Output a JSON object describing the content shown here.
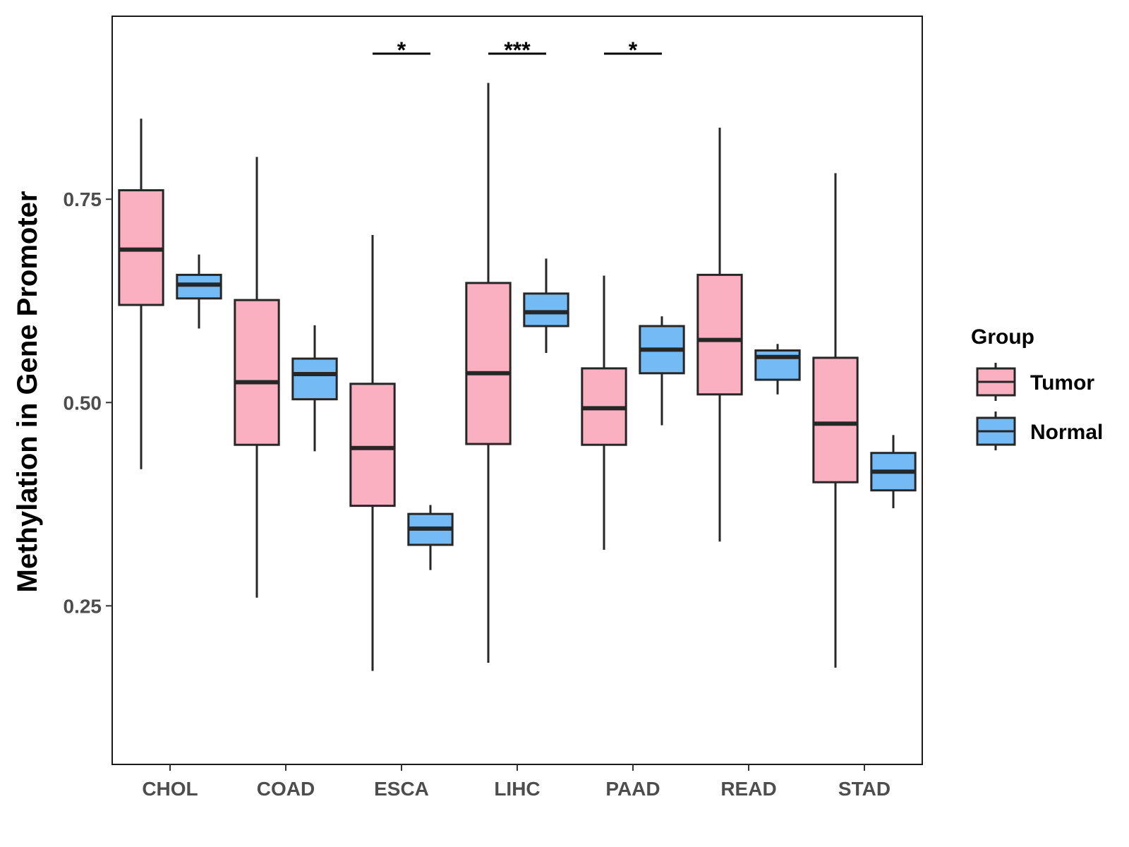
{
  "chart_data": {
    "type": "boxplot",
    "title": "",
    "xlabel": "",
    "ylabel": "Methylation in Gene Promoter",
    "ylim": [
      0.055,
      0.975
    ],
    "yticks": [
      0.25,
      0.5,
      0.75
    ],
    "ytick_labels": [
      "0.25",
      "0.50",
      "0.75"
    ],
    "categories": [
      "CHOL",
      "COAD",
      "ESCA",
      "LIHC",
      "PAAD",
      "READ",
      "STAD"
    ],
    "legend": {
      "title": "Group",
      "position": "right"
    },
    "series": [
      {
        "name": "Tumor",
        "color": "#fbb0c2",
        "boxes": [
          {
            "category": "CHOL",
            "min": 0.418,
            "q1": 0.62,
            "median": 0.688,
            "q3": 0.761,
            "max": 0.849
          },
          {
            "category": "COAD",
            "min": 0.26,
            "q1": 0.448,
            "median": 0.525,
            "q3": 0.626,
            "max": 0.802
          },
          {
            "category": "ESCA",
            "min": 0.17,
            "q1": 0.373,
            "median": 0.444,
            "q3": 0.523,
            "max": 0.706
          },
          {
            "category": "LIHC",
            "min": 0.18,
            "q1": 0.449,
            "median": 0.536,
            "q3": 0.647,
            "max": 0.893
          },
          {
            "category": "PAAD",
            "min": 0.319,
            "q1": 0.448,
            "median": 0.493,
            "q3": 0.542,
            "max": 0.656
          },
          {
            "category": "READ",
            "min": 0.329,
            "q1": 0.51,
            "median": 0.577,
            "q3": 0.657,
            "max": 0.838
          },
          {
            "category": "STAD",
            "min": 0.174,
            "q1": 0.402,
            "median": 0.474,
            "q3": 0.555,
            "max": 0.782
          }
        ]
      },
      {
        "name": "Normal",
        "color": "#74bbf6",
        "boxes": [
          {
            "category": "CHOL",
            "min": 0.591,
            "q1": 0.628,
            "median": 0.645,
            "q3": 0.657,
            "max": 0.682
          },
          {
            "category": "COAD",
            "min": 0.44,
            "q1": 0.504,
            "median": 0.535,
            "q3": 0.554,
            "max": 0.595
          },
          {
            "category": "ESCA",
            "min": 0.294,
            "q1": 0.325,
            "median": 0.345,
            "q3": 0.363,
            "max": 0.374
          },
          {
            "category": "LIHC",
            "min": 0.561,
            "q1": 0.594,
            "median": 0.611,
            "q3": 0.634,
            "max": 0.677
          },
          {
            "category": "PAAD",
            "min": 0.472,
            "q1": 0.536,
            "median": 0.565,
            "q3": 0.594,
            "max": 0.606
          },
          {
            "category": "READ",
            "min": 0.51,
            "q1": 0.528,
            "median": 0.556,
            "q3": 0.564,
            "max": 0.572
          },
          {
            "category": "STAD",
            "min": 0.37,
            "q1": 0.392,
            "median": 0.415,
            "q3": 0.438,
            "max": 0.46
          }
        ]
      }
    ],
    "significance": [
      {
        "category": "ESCA",
        "label": "*",
        "y": 0.929
      },
      {
        "category": "LIHC",
        "label": "***",
        "y": 0.929
      },
      {
        "category": "PAAD",
        "label": "*",
        "y": 0.929
      }
    ]
  }
}
